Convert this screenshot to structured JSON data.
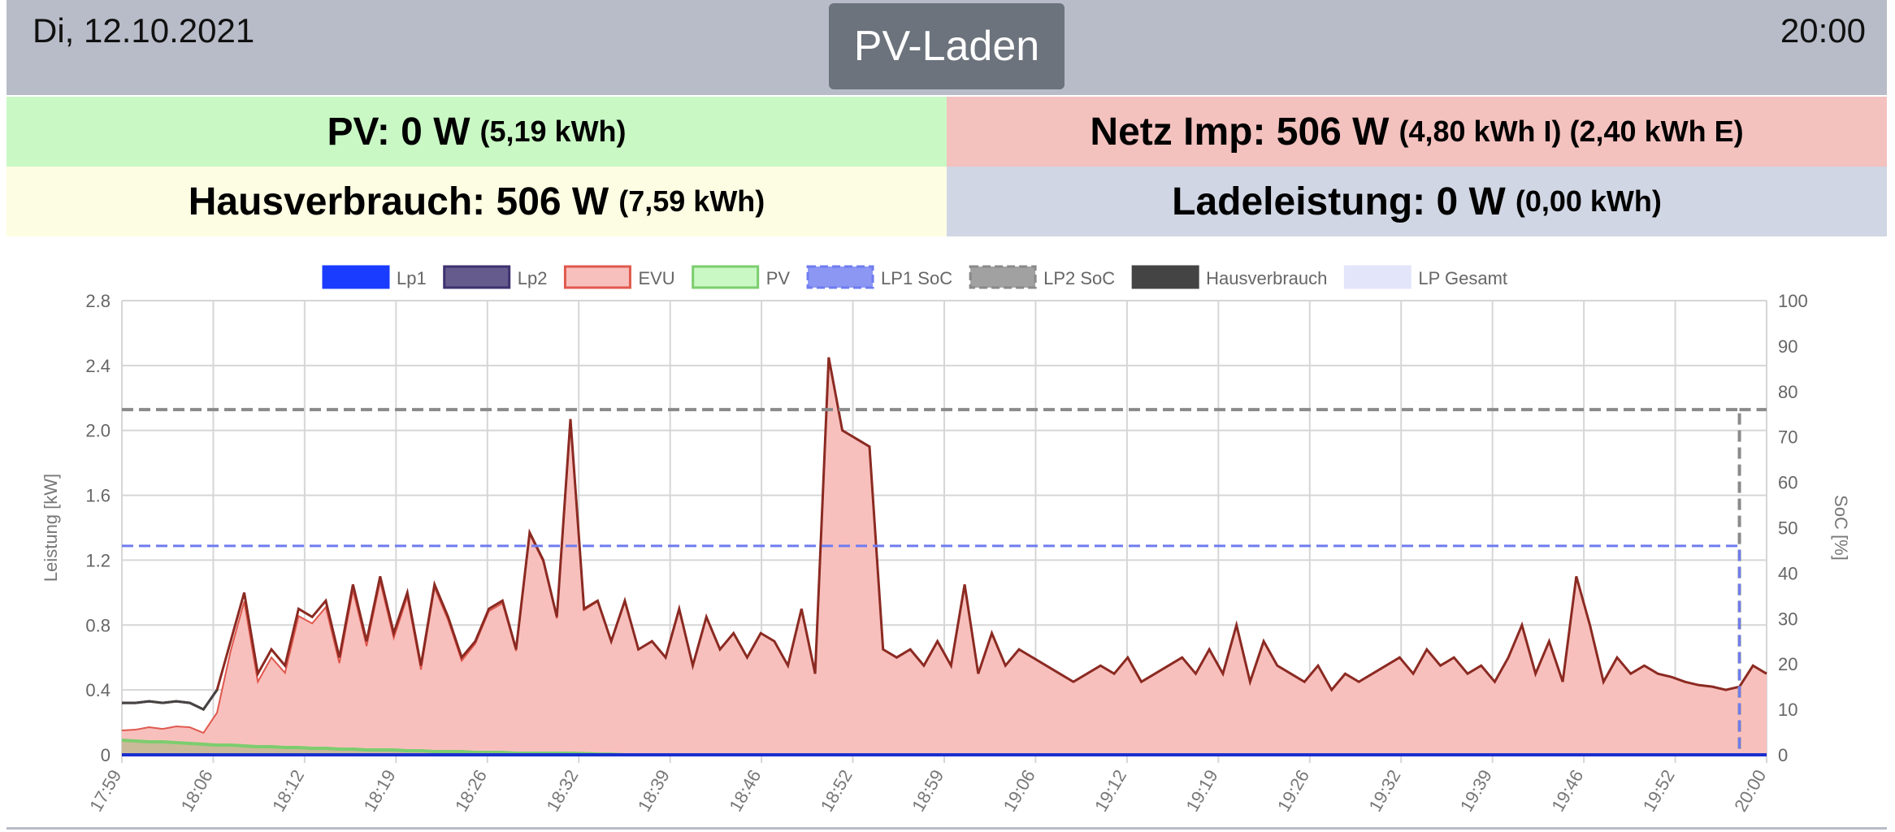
{
  "header": {
    "date": "Di, 12.10.2021",
    "time": "20:00",
    "mode_button": "PV-Laden"
  },
  "tiles": {
    "pv": {
      "main": "PV: 0 W",
      "sub": "(5,19 kWh)"
    },
    "netz": {
      "main": "Netz Imp: 506 W",
      "sub": "(4,80 kWh I) (2,40 kWh E)"
    },
    "haus": {
      "main": "Hausverbrauch: 506 W",
      "sub": "(7,59 kWh)"
    },
    "lade": {
      "main": "Ladeleistung: 0 W",
      "sub": "(0,00 kWh)"
    }
  },
  "colors": {
    "lp1": "#1a3cff",
    "lp2": "#3e3270",
    "evu": "#f8c0bd",
    "evu_line": "#e0584e",
    "pv": "#c9f8c4",
    "pv_line": "#7ccd6e",
    "lp1soc": "#6f7cf0",
    "lp2soc": "#8a8a8a",
    "haus": "#444444",
    "lpges": "#e3e5fb"
  },
  "chart_data": {
    "type": "area",
    "legend_position": "top",
    "legend": [
      "Lp1",
      "Lp2",
      "EVU",
      "PV",
      "LP1 SoC",
      "LP2 SoC",
      "Hausverbrauch",
      "LP Gesamt"
    ],
    "ylabel": "Leistung [kW]",
    "y2label": "SoC [%]",
    "ylim": [
      0,
      2.8
    ],
    "y_ticks": [
      "0",
      "0.4",
      "0.8",
      "1.2",
      "1.6",
      "2.0",
      "2.4",
      "2.8"
    ],
    "y2lim": [
      0,
      100
    ],
    "y2_ticks": [
      "0",
      "10",
      "20",
      "30",
      "40",
      "50",
      "60",
      "70",
      "80",
      "90",
      "100"
    ],
    "x_ticks": [
      "17:59",
      "18:06",
      "18:12",
      "18:19",
      "18:26",
      "18:32",
      "18:39",
      "18:46",
      "18:52",
      "18:59",
      "19:06",
      "19:12",
      "19:19",
      "19:26",
      "19:32",
      "19:39",
      "19:46",
      "19:52",
      "20:00"
    ],
    "x_start": "17:59",
    "x_end": "20:00",
    "interval_minutes": 1,
    "hausverbrauch": [
      0.32,
      0.32,
      0.33,
      0.32,
      0.33,
      0.32,
      0.28,
      0.4,
      0.7,
      1.0,
      0.5,
      0.65,
      0.55,
      0.9,
      0.85,
      0.95,
      0.6,
      1.05,
      0.7,
      1.1,
      0.75,
      1.0,
      0.55,
      1.05,
      0.85,
      0.6,
      0.7,
      0.9,
      0.95,
      0.65,
      1.37,
      1.2,
      0.85,
      2.07,
      0.9,
      0.95,
      0.7,
      0.95,
      0.65,
      0.7,
      0.6,
      0.9,
      0.55,
      0.85,
      0.65,
      0.75,
      0.6,
      0.75,
      0.7,
      0.55,
      0.9,
      0.5,
      2.45,
      2.0,
      1.95,
      1.9,
      0.65,
      0.6,
      0.65,
      0.55,
      0.7,
      0.55,
      1.05,
      0.5,
      0.75,
      0.55,
      0.65,
      0.6,
      0.55,
      0.5,
      0.45,
      0.5,
      0.55,
      0.5,
      0.6,
      0.45,
      0.5,
      0.55,
      0.6,
      0.5,
      0.65,
      0.5,
      0.8,
      0.45,
      0.7,
      0.55,
      0.5,
      0.45,
      0.55,
      0.4,
      0.5,
      0.45,
      0.5,
      0.55,
      0.6,
      0.5,
      0.65,
      0.55,
      0.6,
      0.5,
      0.55,
      0.45,
      0.6,
      0.8,
      0.5,
      0.7,
      0.45,
      1.1,
      0.8,
      0.45,
      0.6,
      0.5,
      0.55,
      0.5,
      0.48,
      0.45,
      0.43,
      0.42,
      0.4,
      0.42,
      0.55,
      0.5
    ],
    "pv": [
      0.09,
      0.085,
      0.08,
      0.08,
      0.075,
      0.07,
      0.065,
      0.06,
      0.06,
      0.055,
      0.05,
      0.05,
      0.045,
      0.045,
      0.04,
      0.04,
      0.035,
      0.035,
      0.03,
      0.03,
      0.03,
      0.025,
      0.025,
      0.02,
      0.02,
      0.02,
      0.015,
      0.015,
      0.015,
      0.01,
      0.01,
      0.01,
      0.01,
      0.01,
      0.008,
      0.005,
      0.004,
      0
    ],
    "lp1": 0,
    "lp2": 0,
    "lp1_soc": 46,
    "lp2_soc": 76,
    "soc_drop_at": "19:58"
  }
}
